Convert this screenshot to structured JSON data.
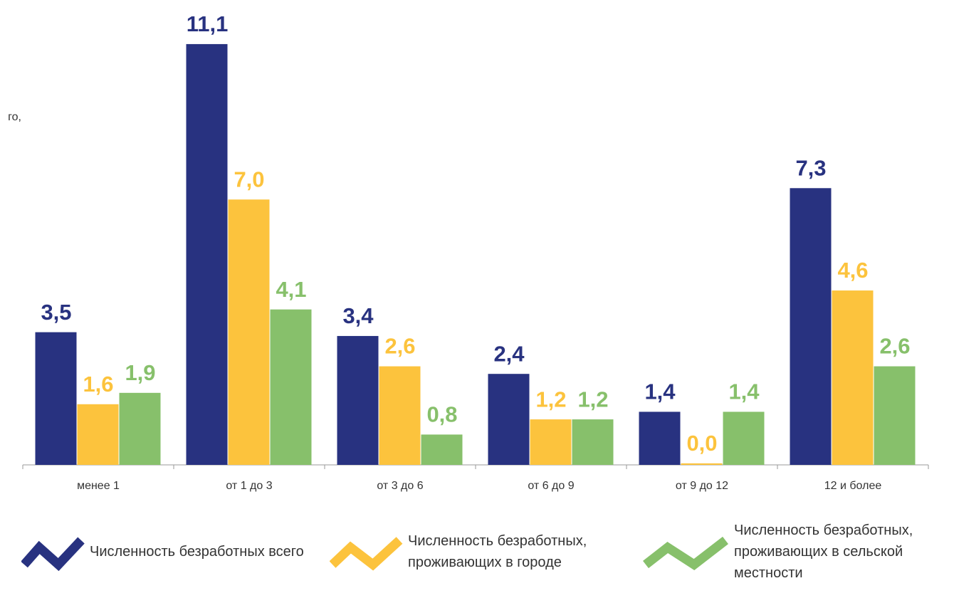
{
  "chart_data": {
    "type": "bar",
    "annotation": "го,",
    "categories": [
      "менее 1",
      "от 1 до 3",
      "от 3 до 6",
      "от 6 до 9",
      "от 9 до 12",
      "12 и более"
    ],
    "series": [
      {
        "name": "Численность безработных всего",
        "color": "#283280",
        "values": [
          3.5,
          11.1,
          3.4,
          2.4,
          1.4,
          7.3
        ],
        "value_labels": [
          "3,5",
          "11,1",
          "3,4",
          "2,4",
          "1,4",
          "7,3"
        ]
      },
      {
        "name": "Численность безработных, проживающих в городе",
        "color": "#fcc33d",
        "values": [
          1.6,
          7.0,
          2.6,
          1.2,
          0.04,
          4.6
        ],
        "value_labels": [
          "1,6",
          "7,0",
          "2,6",
          "1,2",
          "0,0",
          "4,6"
        ]
      },
      {
        "name": "Численность безработных, проживающих в сельской местности",
        "color": "#87c06b",
        "values": [
          1.9,
          4.1,
          0.8,
          1.2,
          1.4,
          2.6
        ],
        "value_labels": [
          "1,9",
          "4,1",
          "0,8",
          "1,2",
          "1,4",
          "2,6"
        ]
      }
    ],
    "ylim": [
      0,
      12
    ]
  }
}
